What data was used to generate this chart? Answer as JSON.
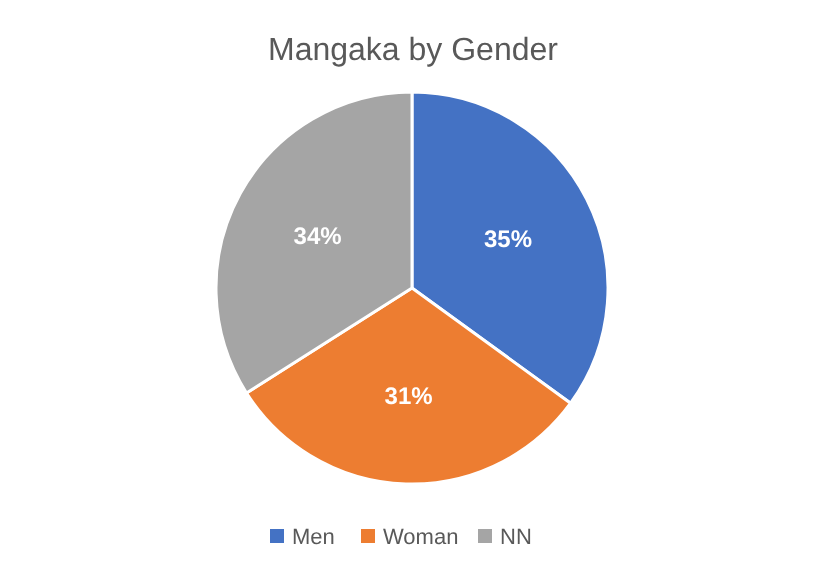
{
  "chart_data": {
    "type": "pie",
    "title": "Mangaka by Gender",
    "categories": [
      "Men",
      "Woman",
      "NN"
    ],
    "values": [
      35,
      31,
      34
    ],
    "value_labels": [
      "35%",
      "31%",
      "34%"
    ],
    "colors": [
      "#4472c4",
      "#ed7d31",
      "#a5a5a5"
    ],
    "legend": "bottom"
  }
}
